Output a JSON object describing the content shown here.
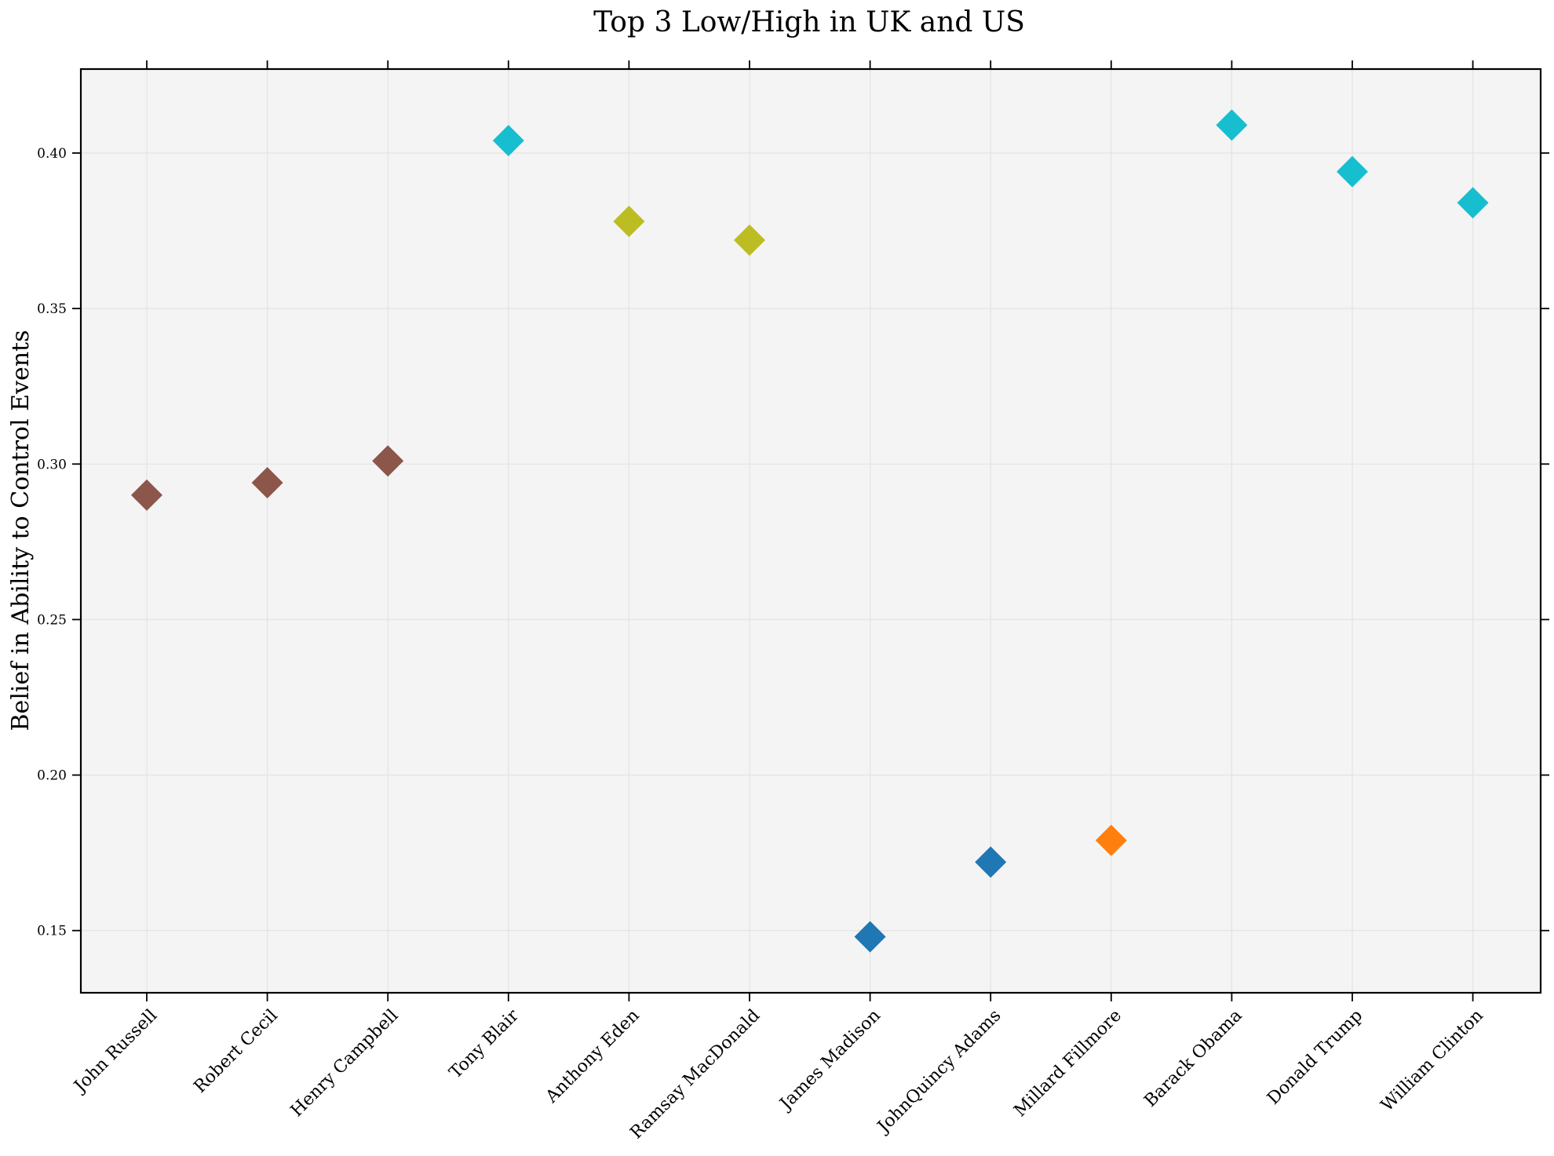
{
  "chart_data": {
    "type": "scatter",
    "title": "Top 3 Low/High in UK and US",
    "xlabel": "",
    "ylabel": "Belief in Ability to Control Events",
    "ylim": [
      0.13,
      0.427
    ],
    "yticks": [
      0.15,
      0.2,
      0.25,
      0.3,
      0.35,
      0.4
    ],
    "ytick_labels": [
      "0.15",
      "0.20",
      "0.25",
      "0.30",
      "0.35",
      "0.40"
    ],
    "grid": true,
    "marker": "diamond",
    "categories": [
      "John Russell",
      "Robert Cecil",
      "Henry Campbell",
      "Tony Blair",
      "Anthony Eden",
      "Ramsay MacDonald",
      "James Madison",
      "JohnQuincy Adams",
      "Millard Fillmore",
      "Barack Obama",
      "Donald Trump",
      "William Clinton"
    ],
    "values": [
      0.29,
      0.294,
      0.301,
      0.404,
      0.378,
      0.372,
      0.148,
      0.172,
      0.179,
      0.409,
      0.394,
      0.384
    ],
    "colors": [
      "#8c564b",
      "#8c564b",
      "#8c564b",
      "#17becf",
      "#bcbd22",
      "#bcbd22",
      "#1f77b4",
      "#1f77b4",
      "#ff7f0e",
      "#17becf",
      "#17becf",
      "#17becf"
    ]
  },
  "style": {
    "plot_background": "#f4f4f4",
    "grid_color": "#e3e3e3",
    "axis_color": "#000000"
  }
}
